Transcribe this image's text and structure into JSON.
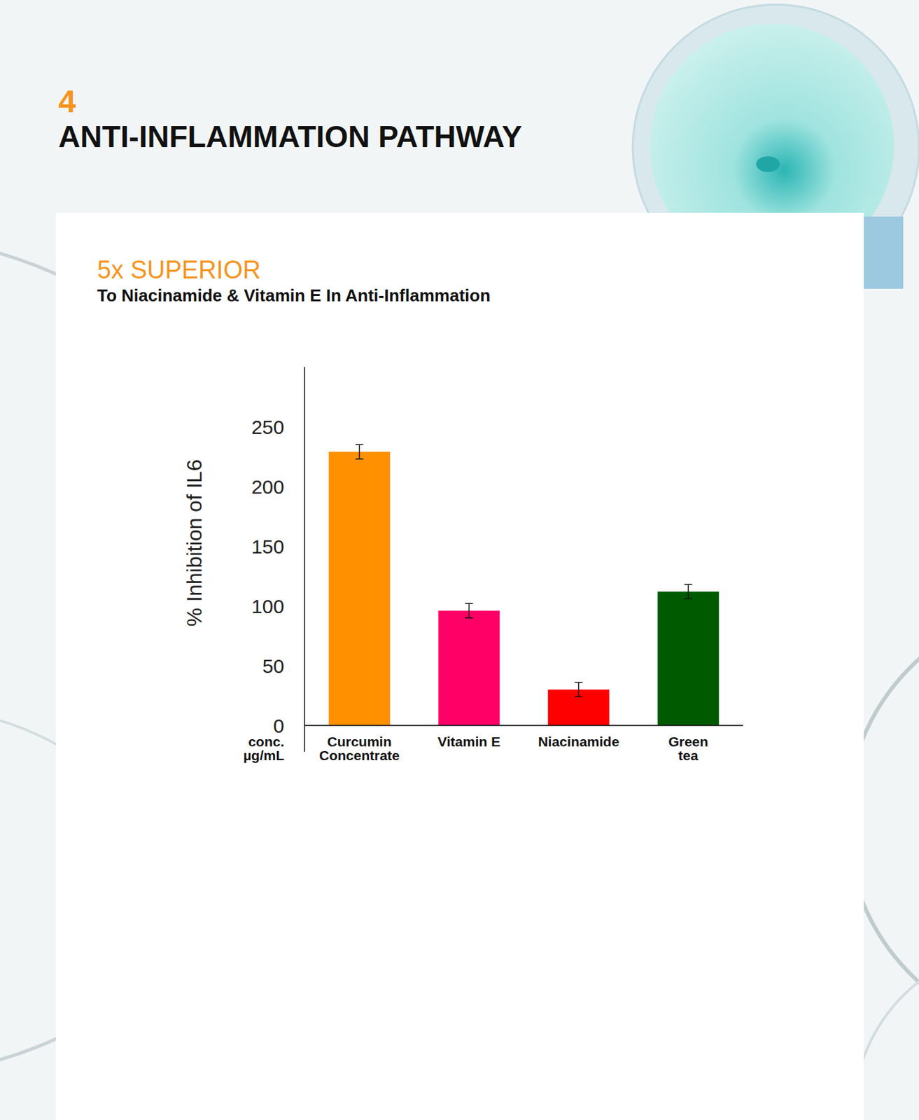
{
  "chart_data": {
    "type": "bar",
    "section_number": "4",
    "title": "ANTI-INFLAMMATION PATHWAY",
    "heading": "5x SUPERIOR",
    "subtitle": "To Niacinamide & Vitamin E In Anti-Inflammation",
    "x_label": "conc.\nµg/mL",
    "y_label": "% Inhibition of IL6",
    "categories": [
      "Curcumin\nConcentrate",
      "Vitamin E",
      "Niacinamide",
      "Green\ntea"
    ],
    "values": [
      229,
      96,
      30,
      112
    ],
    "errors": [
      6,
      6,
      6,
      6
    ],
    "colors": [
      "#ff9100",
      "#ff0066",
      "#ff0000",
      "#005a00"
    ],
    "ylim": [
      0,
      300
    ],
    "yticks": [
      0,
      50,
      100,
      150,
      200,
      250
    ],
    "grid": false
  }
}
